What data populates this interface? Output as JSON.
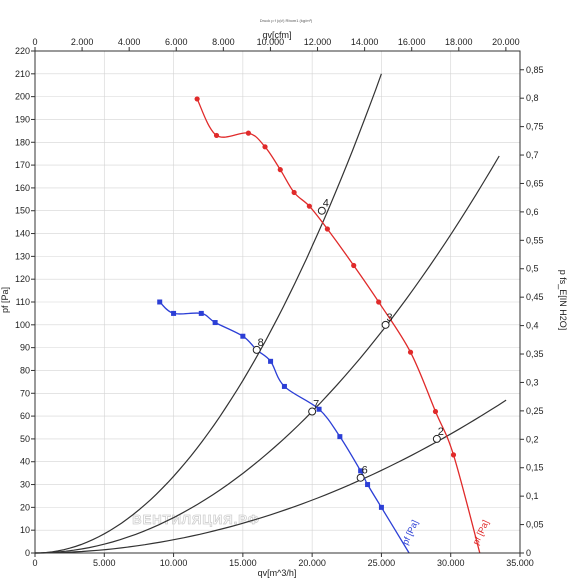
{
  "chart_data": {
    "type": "line",
    "caption": "Druck p f (qV) Rbom1 (kg/m³)",
    "watermark": "ВЕНТИЛЯЦИЯ.РФ",
    "x_bottom": {
      "label": "qv[m^3/h]",
      "range": [
        0,
        35000
      ],
      "ticks": [
        {
          "value": 0,
          "label": "0"
        },
        {
          "value": 5000,
          "label": "5.000"
        },
        {
          "value": 10000,
          "label": "10.000"
        },
        {
          "value": 15000,
          "label": "15.000"
        },
        {
          "value": 20000,
          "label": "20.000"
        },
        {
          "value": 25000,
          "label": "25.000"
        },
        {
          "value": 30000,
          "label": "30.000"
        },
        {
          "value": 35000,
          "label": "35.000"
        }
      ]
    },
    "x_top": {
      "label": "qv[cfm]",
      "range": [
        0,
        20600
      ],
      "ticks": [
        {
          "value": 0,
          "label": "0"
        },
        {
          "value": 2000,
          "label": "2.000"
        },
        {
          "value": 4000,
          "label": "4.000"
        },
        {
          "value": 6000,
          "label": "6.000"
        },
        {
          "value": 8000,
          "label": "8.000"
        },
        {
          "value": 10000,
          "label": "10.000"
        },
        {
          "value": 12000,
          "label": "12.000"
        },
        {
          "value": 14000,
          "label": "14.000"
        },
        {
          "value": 16000,
          "label": "16.000"
        },
        {
          "value": 18000,
          "label": "18.000"
        },
        {
          "value": 20000,
          "label": "20.000"
        }
      ]
    },
    "y_left": {
      "label": "pf [Pa]",
      "range": [
        0,
        220
      ],
      "ticks": [
        {
          "value": 0,
          "label": "0"
        },
        {
          "value": 10,
          "label": "10"
        },
        {
          "value": 20,
          "label": "20"
        },
        {
          "value": 30,
          "label": "30"
        },
        {
          "value": 40,
          "label": "40"
        },
        {
          "value": 50,
          "label": "50"
        },
        {
          "value": 60,
          "label": "60"
        },
        {
          "value": 70,
          "label": "70"
        },
        {
          "value": 80,
          "label": "80"
        },
        {
          "value": 90,
          "label": "90"
        },
        {
          "value": 100,
          "label": "100"
        },
        {
          "value": 110,
          "label": "110"
        },
        {
          "value": 120,
          "label": "120"
        },
        {
          "value": 130,
          "label": "130"
        },
        {
          "value": 140,
          "label": "140"
        },
        {
          "value": 150,
          "label": "150"
        },
        {
          "value": 160,
          "label": "160"
        },
        {
          "value": 170,
          "label": "170"
        },
        {
          "value": 180,
          "label": "180"
        },
        {
          "value": 190,
          "label": "190"
        },
        {
          "value": 200,
          "label": "200"
        },
        {
          "value": 210,
          "label": "210"
        },
        {
          "value": 220,
          "label": "220"
        }
      ]
    },
    "y_right": {
      "label": "p fs_E[IN H2O]",
      "range": [
        0,
        0.883
      ],
      "ticks": [
        {
          "value": 0,
          "label": "0"
        },
        {
          "value": 0.05,
          "label": "0,05"
        },
        {
          "value": 0.1,
          "label": "0,1"
        },
        {
          "value": 0.15,
          "label": "0,15"
        },
        {
          "value": 0.2,
          "label": "0,2"
        },
        {
          "value": 0.25,
          "label": "0,25"
        },
        {
          "value": 0.3,
          "label": "0,3"
        },
        {
          "value": 0.35,
          "label": "0,35"
        },
        {
          "value": 0.4,
          "label": "0,4"
        },
        {
          "value": 0.45,
          "label": "0,45"
        },
        {
          "value": 0.5,
          "label": "0,5"
        },
        {
          "value": 0.55,
          "label": "0,55"
        },
        {
          "value": 0.6,
          "label": "0,6"
        },
        {
          "value": 0.65,
          "label": "0,65"
        },
        {
          "value": 0.7,
          "label": "0,7"
        },
        {
          "value": 0.75,
          "label": "0,75"
        },
        {
          "value": 0.8,
          "label": "0,8"
        },
        {
          "value": 0.85,
          "label": "0,85"
        }
      ]
    },
    "grid": true,
    "series": [
      {
        "name": "pf [Pa]",
        "color": "#e02a2a",
        "marker": "circle",
        "x": [
          11700,
          13100,
          15400,
          16600,
          17700,
          18700,
          19800,
          21100,
          23000,
          24800,
          27100,
          28900,
          30200,
          32100
        ],
        "y": [
          199,
          183,
          184,
          178,
          168,
          158,
          152,
          142,
          126,
          110,
          88,
          62,
          43,
          0
        ],
        "labeled_points": [
          {
            "x": 12000,
            "y": 150
          },
          {
            "x": 29000,
            "y": 50
          }
        ]
      },
      {
        "name": "pf [Pa]",
        "color": "#2c3fd6",
        "marker": "square",
        "x": [
          9000,
          10000,
          12000,
          13000,
          15000,
          16000,
          17000,
          18000,
          20500,
          22000,
          23500,
          24000,
          25000,
          27000
        ],
        "y": [
          110,
          105,
          105,
          101,
          95,
          89,
          84,
          73,
          63,
          51,
          36,
          30,
          20,
          0
        ],
        "labeled_points": [
          {
            "x": 16000,
            "y": 89
          },
          {
            "x": 20000,
            "y": 62
          },
          {
            "x": 23500,
            "y": 33
          }
        ]
      }
    ],
    "system_curves": [
      {
        "color": "#333333",
        "x": [
          0,
          25000
        ],
        "y": [
          0,
          210
        ]
      },
      {
        "color": "#333333",
        "x": [
          0,
          33500
        ],
        "y": [
          0,
          174
        ]
      },
      {
        "color": "#333333",
        "x": [
          0,
          34000
        ],
        "y": [
          0,
          67
        ]
      }
    ],
    "operating_points": [
      {
        "label": "4",
        "x": 20700,
        "y": 150
      },
      {
        "label": "3",
        "x": 25300,
        "y": 100
      },
      {
        "label": "2",
        "x": 29000,
        "y": 50
      },
      {
        "label": "8",
        "x": 16000,
        "y": 89
      },
      {
        "label": "7",
        "x": 20000,
        "y": 62
      },
      {
        "label": "6",
        "x": 23500,
        "y": 33
      }
    ]
  }
}
